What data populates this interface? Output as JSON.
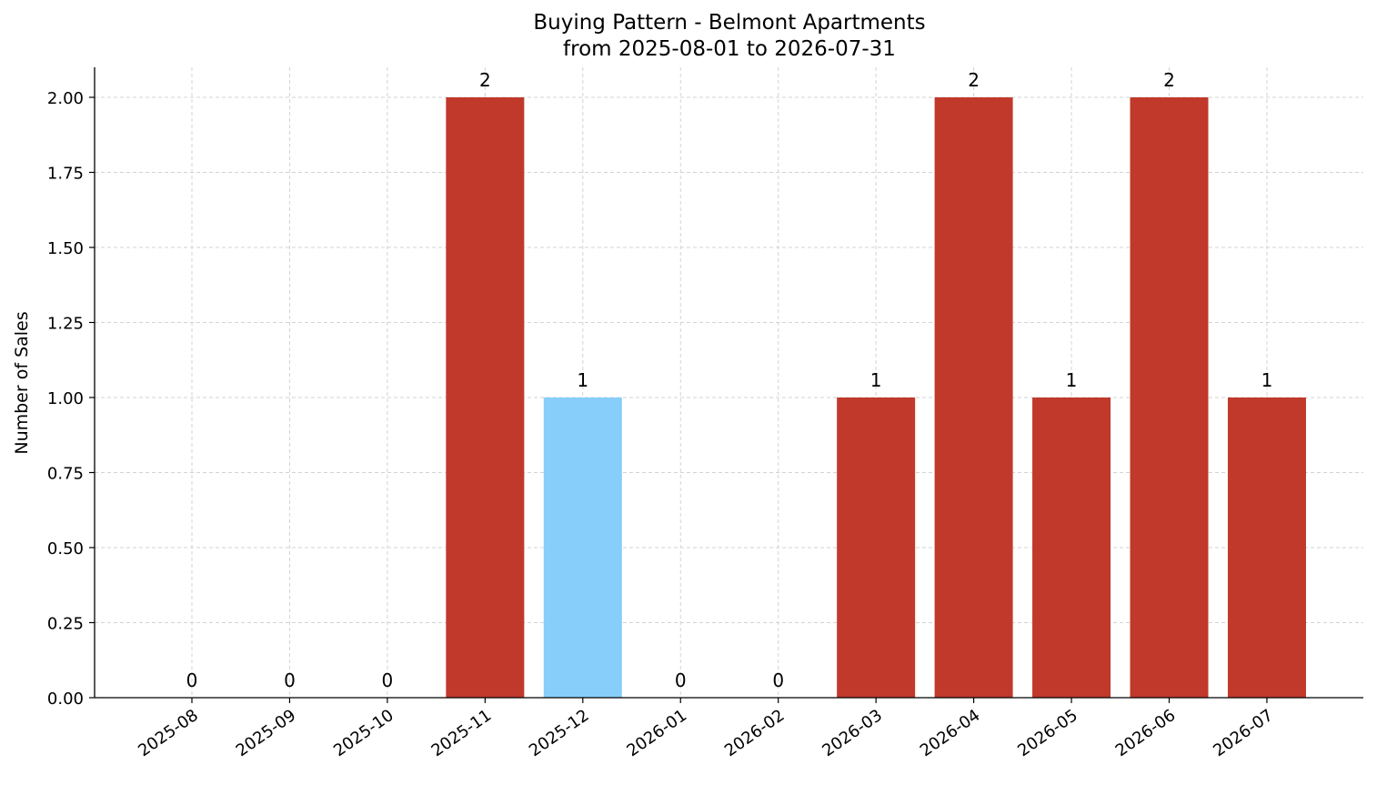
{
  "chart_data": {
    "type": "bar",
    "title": "Buying Pattern - Belmont Apartments",
    "subtitle": "from 2025-08-01 to 2026-07-31",
    "xlabel": "",
    "ylabel": "Number of Sales",
    "categories": [
      "2025-08",
      "2025-09",
      "2025-10",
      "2025-11",
      "2025-12",
      "2026-01",
      "2026-02",
      "2026-03",
      "2026-04",
      "2026-05",
      "2026-06",
      "2026-07"
    ],
    "values": [
      0,
      0,
      0,
      2,
      1,
      0,
      0,
      1,
      2,
      1,
      2,
      1
    ],
    "bar_colors": [
      "#c0392b",
      "#c0392b",
      "#c0392b",
      "#c0392b",
      "#87cefa",
      "#c0392b",
      "#c0392b",
      "#c0392b",
      "#c0392b",
      "#c0392b",
      "#c0392b",
      "#c0392b"
    ],
    "ylim": [
      0,
      2.1
    ],
    "yticks": [
      "0.00",
      "0.25",
      "0.50",
      "0.75",
      "1.00",
      "1.25",
      "1.50",
      "1.75",
      "2.00"
    ],
    "grid": true
  }
}
